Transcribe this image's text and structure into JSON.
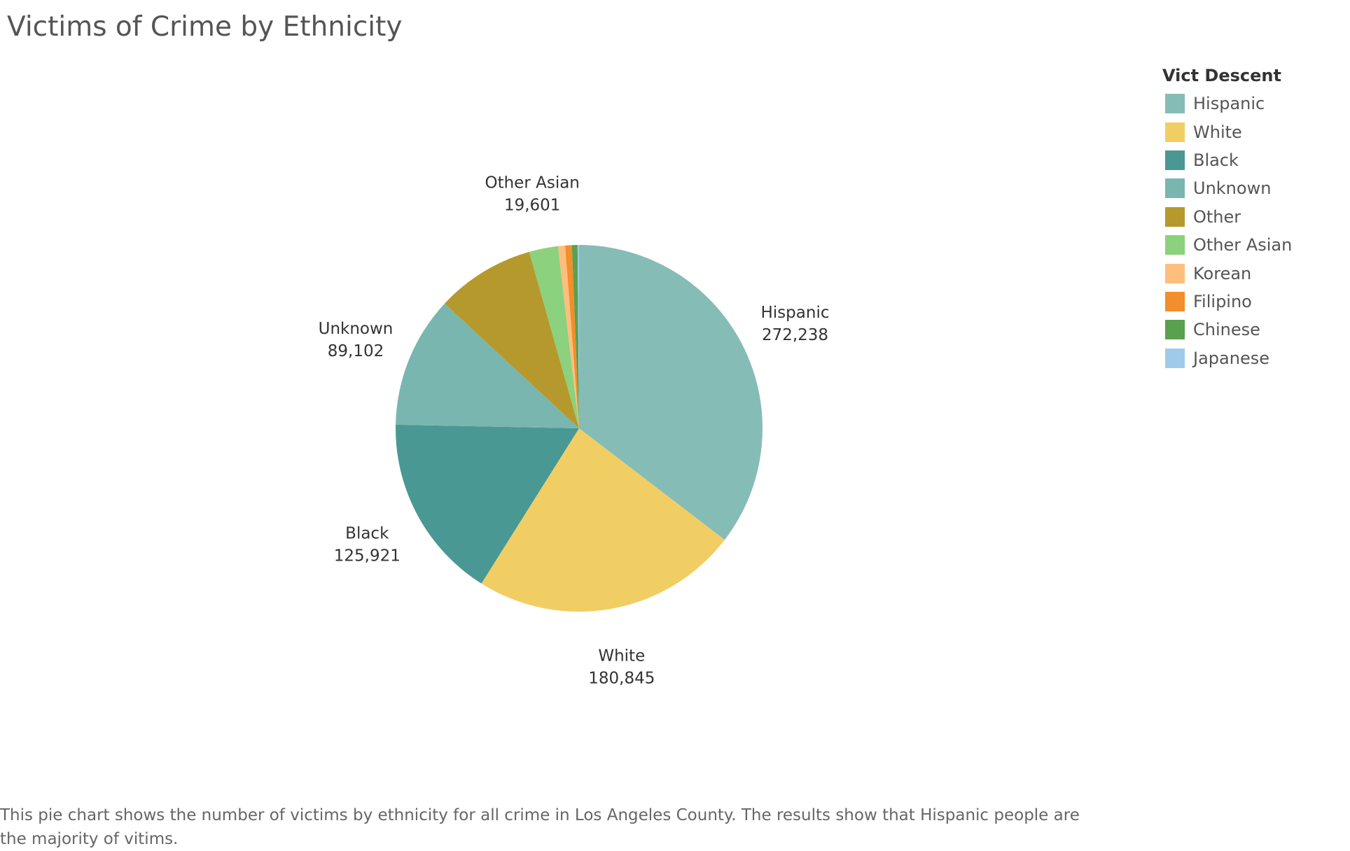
{
  "chart_data": {
    "type": "pie",
    "title": "Victims of Crime by Ethnicity",
    "legend_title": "Vict Descent",
    "legend_position": "top-right",
    "slices": [
      {
        "label": "Hispanic",
        "value": 272238,
        "color": "#86bcb6",
        "label_shown": true,
        "value_text": "272,238"
      },
      {
        "label": "White",
        "value": 180845,
        "color": "#f1ce63",
        "label_shown": true,
        "value_text": "180,845"
      },
      {
        "label": "Black",
        "value": 125921,
        "color": "#499894",
        "label_shown": true,
        "value_text": "125,921"
      },
      {
        "label": "Unknown",
        "value": 89102,
        "color": "#79b6b0",
        "label_shown": true,
        "value_text": "89,102"
      },
      {
        "label": "Other",
        "value": 67000,
        "color": "#b6992d",
        "label_shown": false
      },
      {
        "label": "Other Asian",
        "value": 19601,
        "color": "#8cd17d",
        "label_shown": true,
        "value_text": "19,601"
      },
      {
        "label": "Korean",
        "value": 4800,
        "color": "#ffbe7d",
        "label_shown": false
      },
      {
        "label": "Filipino",
        "value": 4500,
        "color": "#f28e2b",
        "label_shown": false
      },
      {
        "label": "Chinese",
        "value": 3800,
        "color": "#59a14f",
        "label_shown": false
      },
      {
        "label": "Japanese",
        "value": 1000,
        "color": "#a0cbe8",
        "label_shown": false
      }
    ]
  },
  "caption": "This pie chart shows the number of victims by ethnicity for all crime in Los Angeles County. The results show that Hispanic people are the majority of vitims."
}
